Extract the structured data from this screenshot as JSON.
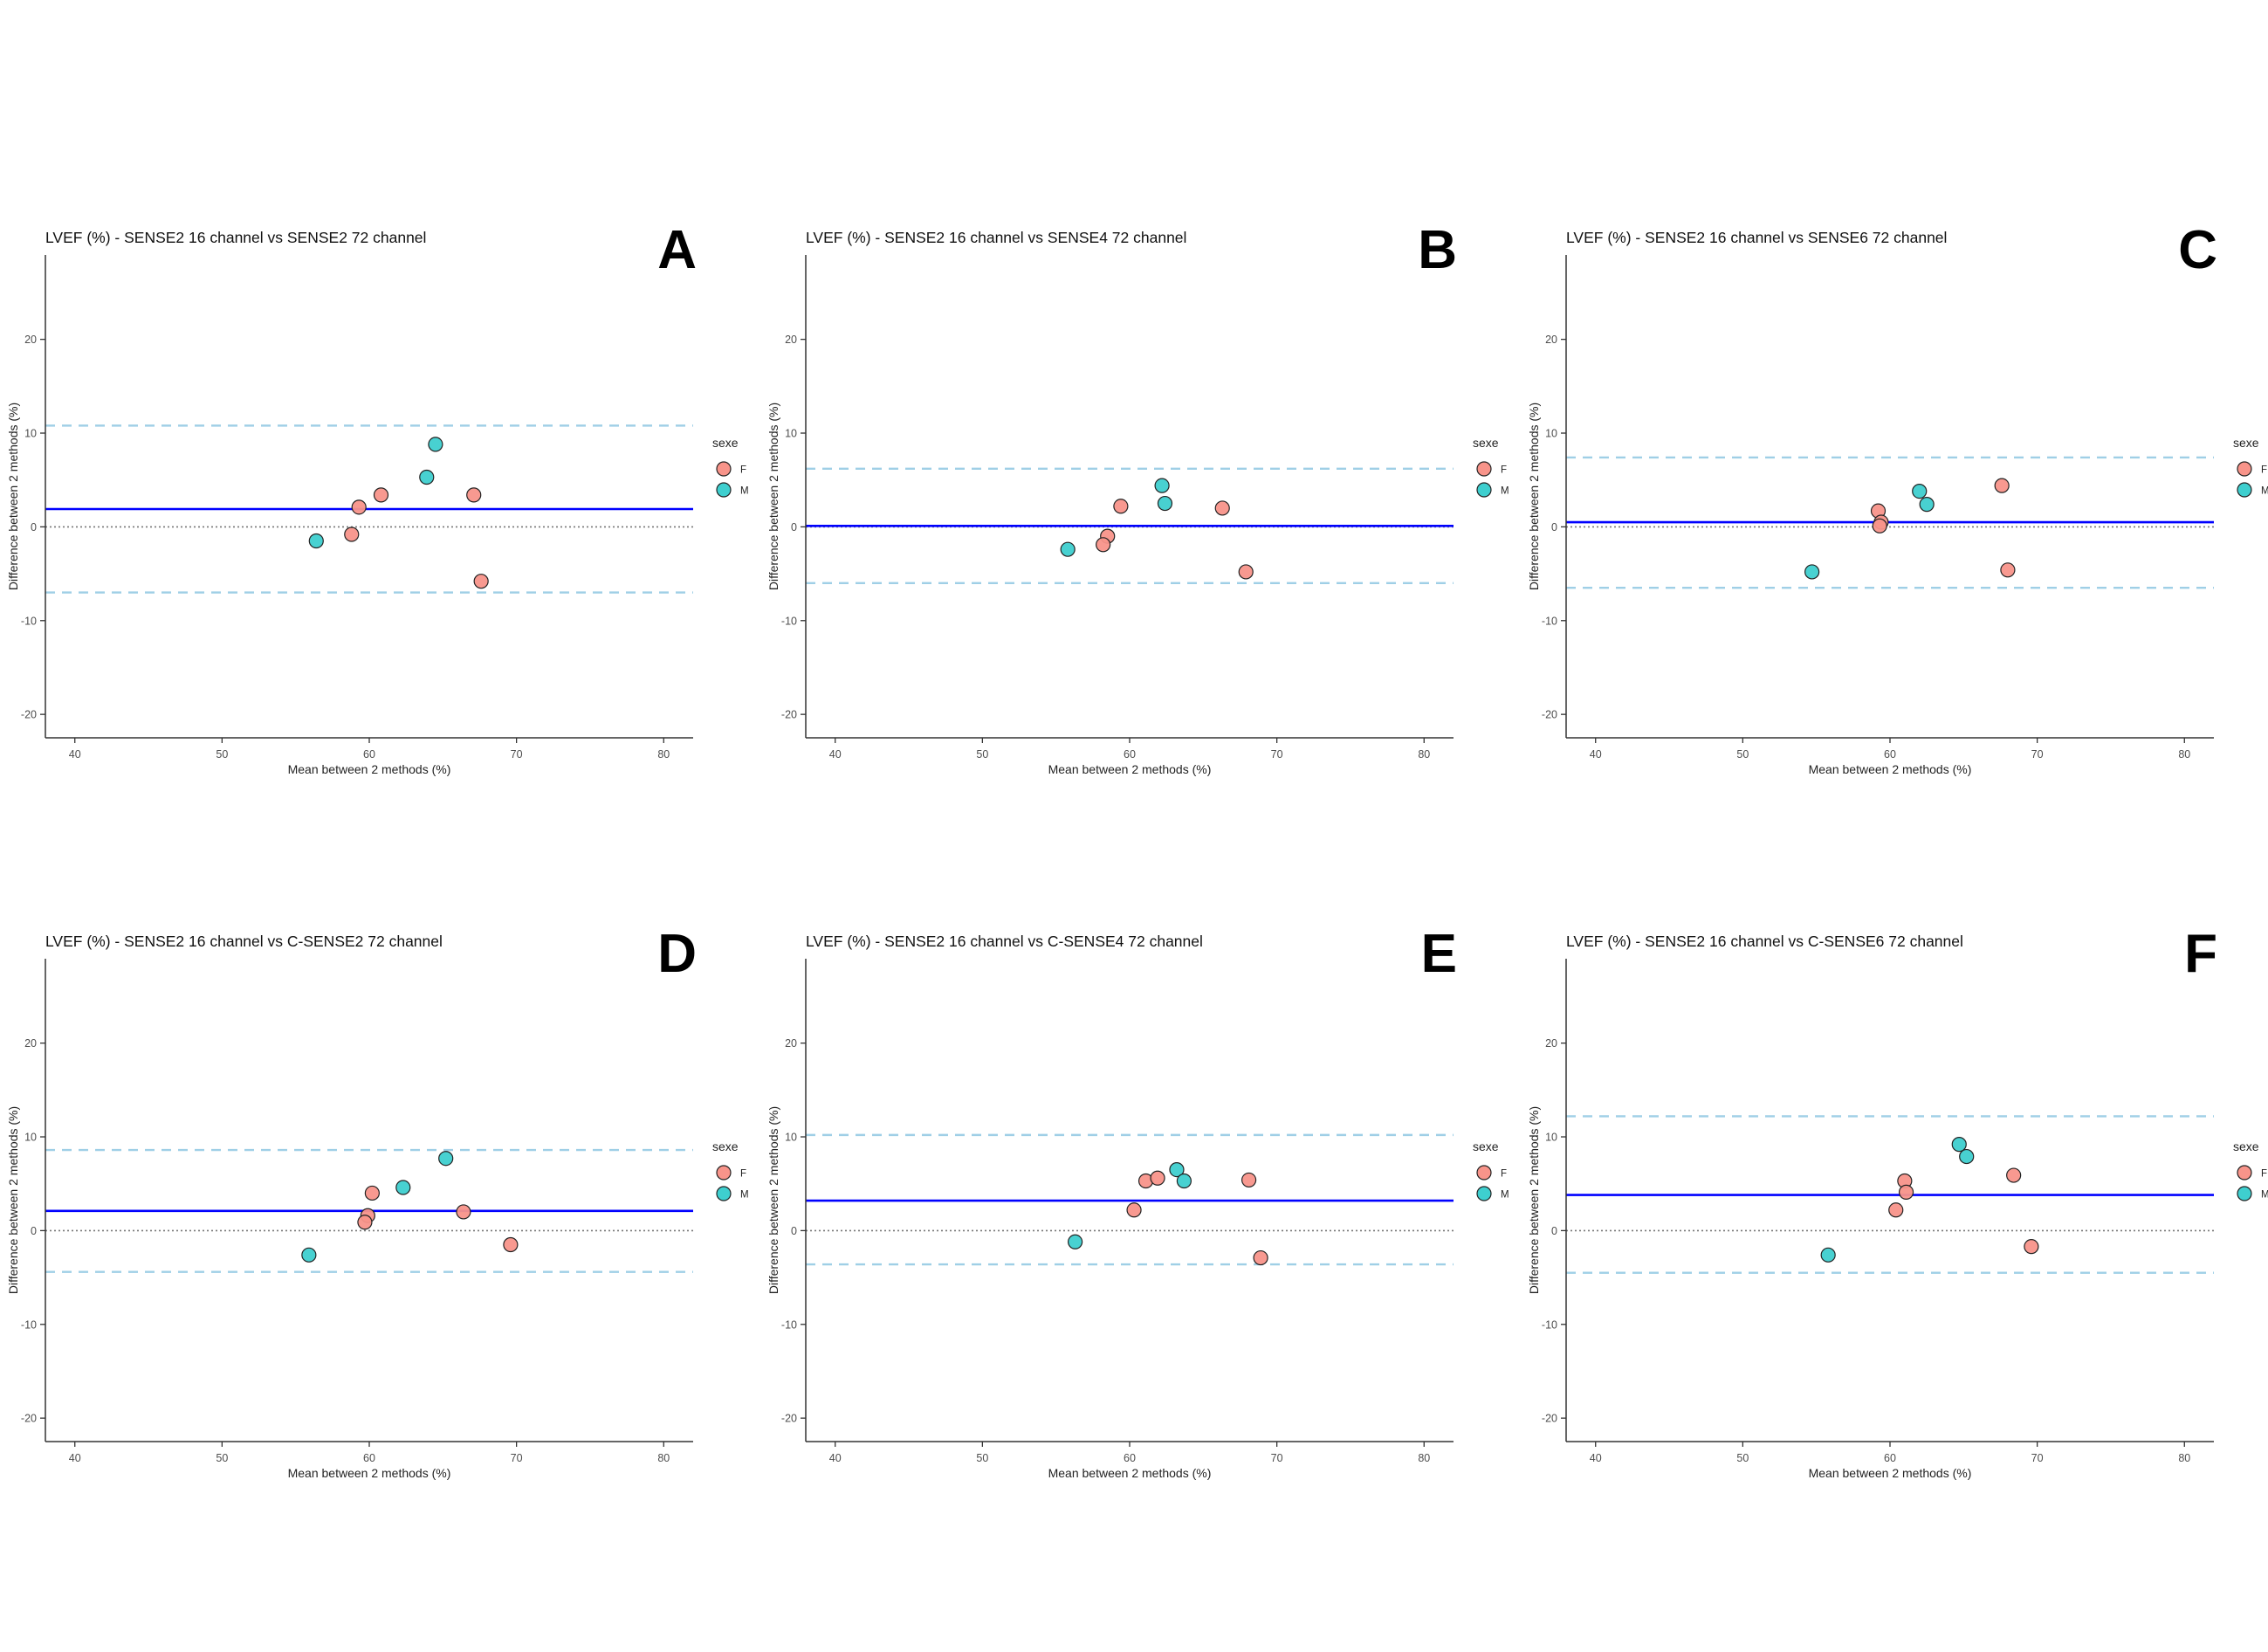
{
  "figure": {
    "xlabel": "Mean between 2 methods (%)",
    "ylabel": "Difference between 2 methods (%)",
    "legend": {
      "title": "sexe",
      "entries": [
        {
          "key": "F",
          "label": "F"
        },
        {
          "key": "M",
          "label": "M"
        }
      ]
    },
    "colors": {
      "F": "#f8948a",
      "M": "#3ecfcf",
      "mean_line": "#0000ff",
      "loa_line": "#9fcfe6",
      "zero_line": "#777777",
      "axis": "#333333"
    }
  },
  "chart_data": [
    {
      "type": "scatter",
      "letter": "A",
      "title": "LVEF (%) - SENSE2 16 channel vs SENSE2 72 channel",
      "xlabel": "Mean between 2 methods (%)",
      "ylabel": "Difference between 2 methods (%)",
      "xlim": [
        38,
        82
      ],
      "ylim": [
        -22.5,
        29
      ],
      "xticks": [
        40,
        50,
        60,
        70,
        80
      ],
      "yticks": [
        -20,
        -10,
        0,
        10,
        20
      ],
      "mean_difference": 1.9,
      "upper_loa": 10.8,
      "lower_loa": -7.0,
      "series": [
        {
          "name": "F",
          "points": [
            [
              59.3,
              2.1
            ],
            [
              60.8,
              3.4
            ],
            [
              58.8,
              -0.8
            ],
            [
              67.1,
              3.4
            ],
            [
              67.6,
              -5.8
            ]
          ]
        },
        {
          "name": "M",
          "points": [
            [
              56.4,
              -1.5
            ],
            [
              63.9,
              5.3
            ],
            [
              64.5,
              8.8
            ]
          ]
        }
      ]
    },
    {
      "type": "scatter",
      "letter": "B",
      "title": "LVEF (%) - SENSE2 16 channel vs SENSE4 72 channel",
      "xlabel": "Mean between 2 methods (%)",
      "ylabel": "Difference between 2 methods (%)",
      "xlim": [
        38,
        82
      ],
      "ylim": [
        -22.5,
        29
      ],
      "xticks": [
        40,
        50,
        60,
        70,
        80
      ],
      "yticks": [
        -20,
        -10,
        0,
        10,
        20
      ],
      "mean_difference": 0.1,
      "upper_loa": 6.2,
      "lower_loa": -6.0,
      "series": [
        {
          "name": "F",
          "points": [
            [
              59.4,
              2.2
            ],
            [
              58.5,
              -1.0
            ],
            [
              58.2,
              -1.9
            ],
            [
              66.3,
              2.0
            ],
            [
              67.9,
              -4.8
            ]
          ]
        },
        {
          "name": "M",
          "points": [
            [
              55.8,
              -2.4
            ],
            [
              62.2,
              4.4
            ],
            [
              62.4,
              2.5
            ]
          ]
        }
      ]
    },
    {
      "type": "scatter",
      "letter": "C",
      "title": "LVEF (%) - SENSE2 16 channel vs SENSE6 72 channel",
      "xlabel": "Mean between 2 methods (%)",
      "ylabel": "Difference between 2 methods (%)",
      "xlim": [
        38,
        82
      ],
      "ylim": [
        -22.5,
        29
      ],
      "xticks": [
        40,
        50,
        60,
        70,
        80
      ],
      "yticks": [
        -20,
        -10,
        0,
        10,
        20
      ],
      "mean_difference": 0.5,
      "upper_loa": 7.4,
      "lower_loa": -6.5,
      "series": [
        {
          "name": "F",
          "points": [
            [
              59.2,
              1.7
            ],
            [
              59.4,
              0.5
            ],
            [
              59.3,
              0.1
            ],
            [
              67.6,
              4.4
            ],
            [
              68.0,
              -4.6
            ]
          ]
        },
        {
          "name": "M",
          "points": [
            [
              54.7,
              -4.8
            ],
            [
              62.0,
              3.8
            ],
            [
              62.5,
              2.4
            ]
          ]
        }
      ]
    },
    {
      "type": "scatter",
      "letter": "D",
      "title": "LVEF (%) - SENSE2 16 channel vs C-SENSE2 72 channel",
      "xlabel": "Mean between 2 methods (%)",
      "ylabel": "Difference between 2 methods (%)",
      "xlim": [
        38,
        82
      ],
      "ylim": [
        -22.5,
        29
      ],
      "xticks": [
        40,
        50,
        60,
        70,
        80
      ],
      "yticks": [
        -20,
        -10,
        0,
        10,
        20
      ],
      "mean_difference": 2.1,
      "upper_loa": 8.6,
      "lower_loa": -4.4,
      "series": [
        {
          "name": "F",
          "points": [
            [
              60.2,
              4.0
            ],
            [
              59.9,
              1.6
            ],
            [
              59.7,
              0.9
            ],
            [
              66.4,
              2.0
            ],
            [
              69.6,
              -1.5
            ]
          ]
        },
        {
          "name": "M",
          "points": [
            [
              55.9,
              -2.6
            ],
            [
              62.3,
              4.6
            ],
            [
              65.2,
              7.7
            ]
          ]
        }
      ]
    },
    {
      "type": "scatter",
      "letter": "E",
      "title": "LVEF (%) - SENSE2 16 channel vs C-SENSE4 72 channel",
      "xlabel": "Mean between 2 methods (%)",
      "ylabel": "Difference between 2 methods (%)",
      "xlim": [
        38,
        82
      ],
      "ylim": [
        -22.5,
        29
      ],
      "xticks": [
        40,
        50,
        60,
        70,
        80
      ],
      "yticks": [
        -20,
        -10,
        0,
        10,
        20
      ],
      "mean_difference": 3.2,
      "upper_loa": 10.2,
      "lower_loa": -3.6,
      "series": [
        {
          "name": "F",
          "points": [
            [
              61.1,
              5.3
            ],
            [
              61.9,
              5.6
            ],
            [
              60.3,
              2.2
            ],
            [
              68.1,
              5.4
            ],
            [
              68.9,
              -2.9
            ]
          ]
        },
        {
          "name": "M",
          "points": [
            [
              56.3,
              -1.2
            ],
            [
              63.2,
              6.5
            ],
            [
              63.7,
              5.3
            ]
          ]
        }
      ]
    },
    {
      "type": "scatter",
      "letter": "F",
      "title": "LVEF (%) - SENSE2 16 channel vs C-SENSE6 72 channel",
      "xlabel": "Mean between 2 methods (%)",
      "ylabel": "Difference between 2 methods (%)",
      "xlim": [
        38,
        82
      ],
      "ylim": [
        -22.5,
        29
      ],
      "xticks": [
        40,
        50,
        60,
        70,
        80
      ],
      "yticks": [
        -20,
        -10,
        0,
        10,
        20
      ],
      "mean_difference": 3.8,
      "upper_loa": 12.2,
      "lower_loa": -4.5,
      "series": [
        {
          "name": "F",
          "points": [
            [
              61.0,
              5.3
            ],
            [
              61.1,
              4.1
            ],
            [
              60.4,
              2.2
            ],
            [
              68.4,
              5.9
            ],
            [
              69.6,
              -1.7
            ]
          ]
        },
        {
          "name": "M",
          "points": [
            [
              55.8,
              -2.6
            ],
            [
              64.7,
              9.2
            ],
            [
              65.2,
              7.9
            ]
          ]
        }
      ]
    }
  ]
}
